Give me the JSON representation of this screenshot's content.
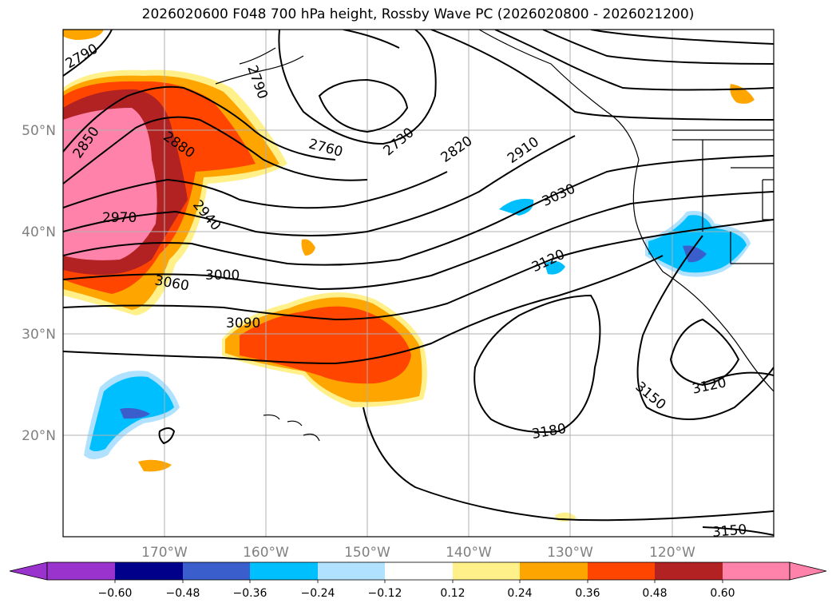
{
  "title": "2026020600 F048 700 hPa height, Rossby Wave PC (2026020800 - 2026021200)",
  "axes": {
    "lat_labels": [
      "50°N",
      "40°N",
      "30°N",
      "20°N"
    ],
    "lon_labels": [
      "170°W",
      "160°W",
      "150°W",
      "140°W",
      "130°W",
      "120°W"
    ]
  },
  "contour_labels": [
    "2790",
    "2850",
    "2880",
    "2970",
    "2940",
    "3000",
    "3060",
    "3090",
    "2790",
    "2760",
    "2730",
    "2820",
    "2910",
    "3030",
    "3120",
    "3180",
    "3150",
    "3120",
    "3150"
  ],
  "colorbar": {
    "ticks": [
      "−0.60",
      "−0.48",
      "−0.36",
      "−0.24",
      "−0.12",
      "0.12",
      "0.24",
      "0.36",
      "0.48",
      "0.60"
    ],
    "colors": [
      "#9a32cd",
      "#00008b",
      "#3a5fcd",
      "#00bfff",
      "#b0e2ff",
      "#ffffff",
      "#fff08a",
      "#ffa500",
      "#ff4500",
      "#b22222",
      "#ff82ab"
    ]
  },
  "colors": {
    "pos_light": "#fff08a",
    "pos_orange": "#ffa500",
    "pos_redorange": "#ff4500",
    "pos_darkred": "#b22222",
    "pos_pink": "#ff82ab",
    "neg_light": "#b0e2ff",
    "neg_blue": "#00bfff",
    "neg_mid": "#3a5fcd"
  }
}
